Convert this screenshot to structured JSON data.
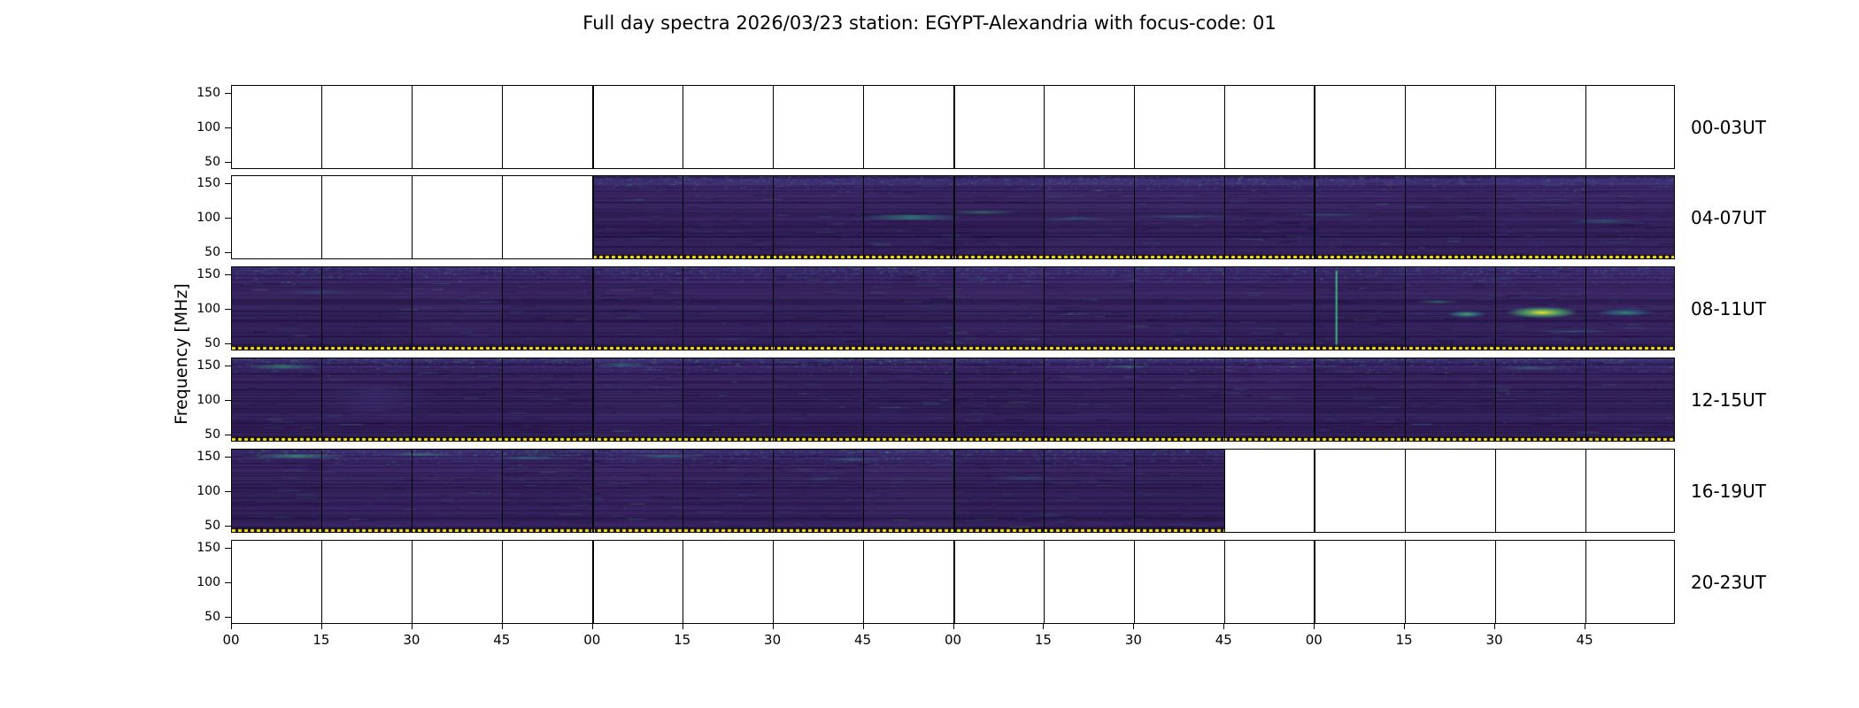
{
  "title": "Full day spectra 2026/03/23 station: EGYPT-Alexandria with focus-code: 01",
  "axes": {
    "ylabel": "Frequency [MHz]",
    "ytick_values": [
      150,
      100,
      50
    ],
    "xtick_labels": [
      "00",
      "15",
      "30",
      "45",
      "00",
      "15",
      "30",
      "45",
      "00",
      "15",
      "30",
      "45",
      "00",
      "15",
      "30",
      "45"
    ]
  },
  "colors": {
    "background": "#ffffff",
    "axis": "#000000",
    "spec_base_top": "#3d2a72",
    "spec_base_mid": "#38235f",
    "spec_base_bottom": "#2f1c55",
    "spec_teal": "#2a928c",
    "spec_green": "#5ec962",
    "spec_peak": "#fde725",
    "dotted_line": "#ffe115"
  },
  "rows": [
    {
      "label": "00-03UT",
      "fill_start": 0,
      "fill_end": 0,
      "features": []
    },
    {
      "label": "04-07UT",
      "fill_start": 4,
      "fill_end": 16,
      "features": [
        {
          "type": "streak",
          "x": 0.47,
          "y": 0.5,
          "w": 0.07,
          "h": 0.055,
          "color": "#2fa98f",
          "alpha": 0.55
        },
        {
          "type": "streak",
          "x": 0.52,
          "y": 0.44,
          "w": 0.05,
          "h": 0.035,
          "color": "#35b779",
          "alpha": 0.4
        },
        {
          "type": "streak",
          "x": 0.585,
          "y": 0.52,
          "w": 0.045,
          "h": 0.03,
          "color": "#2c8e8e",
          "alpha": 0.35
        },
        {
          "type": "streak",
          "x": 0.66,
          "y": 0.49,
          "w": 0.08,
          "h": 0.03,
          "color": "#2fa98f",
          "alpha": 0.3
        },
        {
          "type": "streak",
          "x": 0.76,
          "y": 0.47,
          "w": 0.06,
          "h": 0.03,
          "color": "#2fa98f",
          "alpha": 0.28
        },
        {
          "type": "streak",
          "x": 0.95,
          "y": 0.55,
          "w": 0.05,
          "h": 0.04,
          "color": "#2fa98f",
          "alpha": 0.3
        }
      ]
    },
    {
      "label": "08-11UT",
      "fill_start": 0,
      "fill_end": 16,
      "features": [
        {
          "type": "streak",
          "x": 0.06,
          "y": 0.3,
          "w": 0.05,
          "h": 0.04,
          "color": "#2c728e",
          "alpha": 0.3
        },
        {
          "type": "vline",
          "x": 0.765,
          "color": "#3fd08a",
          "alpha": 0.85
        },
        {
          "type": "streak",
          "x": 0.835,
          "y": 0.42,
          "w": 0.03,
          "h": 0.03,
          "color": "#35b779",
          "alpha": 0.4
        },
        {
          "type": "burst",
          "x": 0.855,
          "y": 0.57,
          "w": 0.028,
          "h": 0.085,
          "core": "#5ec962",
          "fringe": "#2c8e8e",
          "alpha": 0.8
        },
        {
          "type": "burst",
          "x": 0.9075,
          "y": 0.55,
          "w": 0.05,
          "h": 0.14,
          "core": "#fde725",
          "fringe": "#4ac16d",
          "alpha": 1
        },
        {
          "type": "burst",
          "x": 0.965,
          "y": 0.55,
          "w": 0.04,
          "h": 0.09,
          "core": "#35b779",
          "fringe": "#27808e",
          "alpha": 0.7
        },
        {
          "type": "streak",
          "x": 0.93,
          "y": 0.78,
          "w": 0.06,
          "h": 0.03,
          "color": "#2c8e8e",
          "alpha": 0.35
        }
      ]
    },
    {
      "label": "12-15UT",
      "fill_start": 0,
      "fill_end": 16,
      "features": [
        {
          "type": "streak",
          "x": 0.035,
          "y": 0.1,
          "w": 0.05,
          "h": 0.05,
          "color": "#35b779",
          "alpha": 0.45
        },
        {
          "type": "streak",
          "x": 0.1,
          "y": 0.5,
          "w": 0.08,
          "h": 0.3,
          "color": "#433e85",
          "alpha": 0.3
        },
        {
          "type": "streak",
          "x": 0.27,
          "y": 0.08,
          "w": 0.04,
          "h": 0.04,
          "color": "#2fa98f",
          "alpha": 0.4
        },
        {
          "type": "streak",
          "x": 0.62,
          "y": 0.1,
          "w": 0.03,
          "h": 0.03,
          "color": "#35b779",
          "alpha": 0.35
        },
        {
          "type": "streak",
          "x": 0.9,
          "y": 0.12,
          "w": 0.05,
          "h": 0.03,
          "color": "#2fa98f",
          "alpha": 0.35
        }
      ]
    },
    {
      "label": "16-19UT",
      "fill_start": 0,
      "fill_end": 11,
      "features": [
        {
          "type": "streak",
          "x": 0.045,
          "y": 0.08,
          "w": 0.07,
          "h": 0.04,
          "color": "#3fd08a",
          "alpha": 0.5
        },
        {
          "type": "streak",
          "x": 0.13,
          "y": 0.06,
          "w": 0.05,
          "h": 0.03,
          "color": "#35b779",
          "alpha": 0.45
        },
        {
          "type": "streak",
          "x": 0.205,
          "y": 0.1,
          "w": 0.05,
          "h": 0.03,
          "color": "#2fa98f",
          "alpha": 0.4
        },
        {
          "type": "streak",
          "x": 0.3,
          "y": 0.08,
          "w": 0.06,
          "h": 0.03,
          "color": "#35b779",
          "alpha": 0.4
        },
        {
          "type": "streak",
          "x": 0.43,
          "y": 0.12,
          "w": 0.04,
          "h": 0.03,
          "color": "#2fa98f",
          "alpha": 0.35
        },
        {
          "type": "streak",
          "x": 0.55,
          "y": 0.35,
          "w": 0.05,
          "h": 0.04,
          "color": "#2c728e",
          "alpha": 0.3
        }
      ]
    },
    {
      "label": "20-23UT",
      "fill_start": 0,
      "fill_end": 0,
      "features": []
    }
  ],
  "chart_data": {
    "type": "heatmap",
    "title": "Full day spectra 2026/03/23 station: EGYPT-Alexandria with focus-code: 01",
    "date": "2026/03/23",
    "station": "EGYPT-Alexandria",
    "focus_code": "01",
    "ylabel": "Frequency [MHz]",
    "ylim": [
      40,
      161
    ],
    "yticks": [
      50,
      100,
      150
    ],
    "x_axis": "minutes within each hour, 4 hours per row, 16 quarter-hour panels per row",
    "xticks_per_hour": [
      "00",
      "15",
      "30",
      "45"
    ],
    "colormap": "viridis",
    "background_level": "low intensity (dark purple) with faint horizontal striations",
    "calibration_marker": "yellow dotted line along the bottom (~45-50 MHz) of every recorded segment",
    "rows": [
      {
        "time_range": "00-03UT",
        "data_coverage": "none",
        "notes": "blank panels, no recording"
      },
      {
        "time_range": "04-07UT",
        "data_coverage": "05:00-07:59",
        "notes": "first hour blank; faint teal emission bands near 100 MHz around 05:45-06:30"
      },
      {
        "time_range": "08-11UT",
        "data_coverage": "08:00-11:59",
        "notes": "strong narrowband burst ~90-110 MHz around 11:30-11:45 (peak, bright yellow) with green enhancements before and after; vertical broadband spike ~11:05"
      },
      {
        "time_range": "12-15UT",
        "data_coverage": "12:00-15:59",
        "notes": "weak diffuse activity, scattered teal patches near 140-155 MHz"
      },
      {
        "time_range": "16-19UT",
        "data_coverage": "16:00-18:45",
        "notes": "green high-frequency streaks in first hours; recording stops at 18:45, remainder blank"
      },
      {
        "time_range": "20-23UT",
        "data_coverage": "none",
        "notes": "blank panels, no recording"
      }
    ]
  }
}
